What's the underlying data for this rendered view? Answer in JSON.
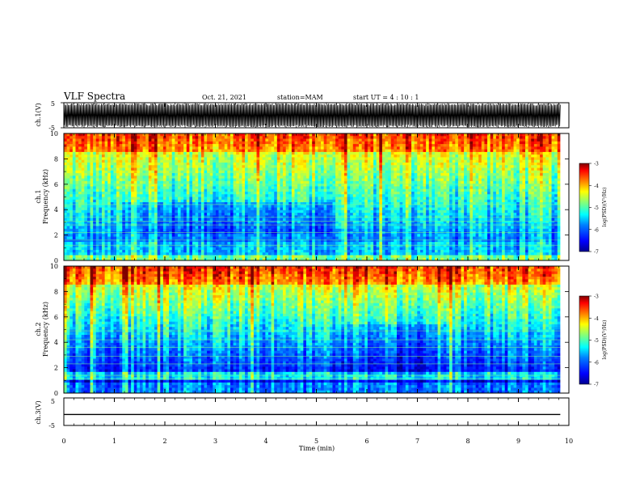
{
  "header": {
    "title": "VLF Spectra",
    "date": "Oct. 21, 2021",
    "station": "station=MAM",
    "start_ut": "start  UT =   4 : 10 : 1"
  },
  "chart_data": [
    {
      "type": "line",
      "panel": "ch1-waveform",
      "ylabel": "ch.1(V)",
      "yticks": [
        "5",
        "-5"
      ],
      "ylim": [
        -5,
        5
      ],
      "xlim": [
        0,
        10
      ],
      "note_values": "dense black broadband waveform between about -5 and 5 V over 0–9.8 min"
    },
    {
      "type": "heatmap",
      "panel": "ch1-spectrogram",
      "ylabel_line1": "ch.1",
      "ylabel_line2": "Frequency (kHz)",
      "yticks": [
        "0",
        "2",
        "4",
        "6",
        "8",
        "10"
      ],
      "ylim": [
        0,
        10
      ],
      "xlim": [
        0,
        10
      ],
      "data_end_min": 9.83,
      "colorbar": {
        "label": "log(PSD)(V²/Hz)",
        "ticks": [
          "-3",
          "-4",
          "-5",
          "-6",
          "-7"
        ],
        "range": [
          -7,
          -3
        ]
      },
      "colors": [
        "#00008f",
        "#0000ff",
        "#007fff",
        "#00ffff",
        "#7fff7f",
        "#ffff00",
        "#ff7f00",
        "#ff0000",
        "#7f0000"
      ]
    },
    {
      "type": "heatmap",
      "panel": "ch2-spectrogram",
      "ylabel_line1": "ch.2",
      "ylabel_line2": "Frequency (kHz)",
      "yticks": [
        "0",
        "2",
        "4",
        "6",
        "8",
        "10"
      ],
      "ylim": [
        0,
        10
      ],
      "xlim": [
        0,
        10
      ],
      "data_end_min": 9.83,
      "colorbar": {
        "label": "log(PSD)(V²/Hz)",
        "ticks": [
          "-3",
          "-4",
          "-5",
          "-6",
          "-7"
        ],
        "range": [
          -7,
          -3
        ]
      }
    },
    {
      "type": "line",
      "panel": "ch3-waveform",
      "ylabel": "ch.3(V)",
      "yticks": [
        "5",
        "-5"
      ],
      "ylim": [
        -5,
        5
      ],
      "xlim": [
        0,
        10
      ],
      "x": [
        0,
        9.83
      ],
      "y": [
        -1.0,
        -1.0
      ]
    }
  ],
  "xaxis": {
    "label": "Time  (min)",
    "ticks": [
      "0",
      "1",
      "2",
      "3",
      "4",
      "5",
      "6",
      "7",
      "8",
      "9",
      "10"
    ]
  }
}
